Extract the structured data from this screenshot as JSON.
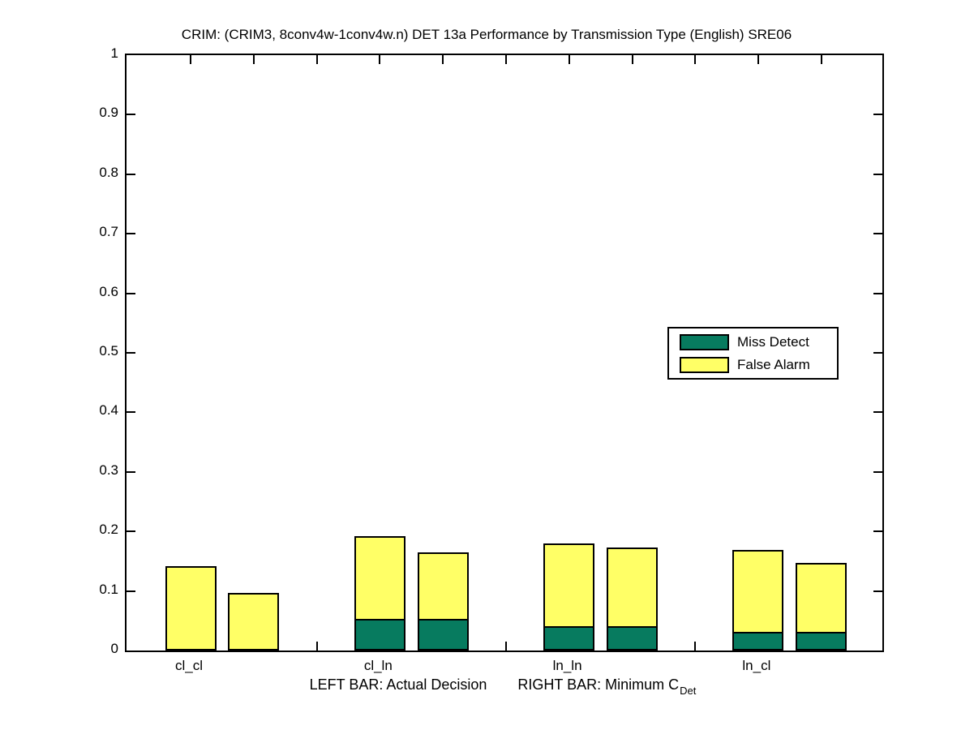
{
  "title": "CRIM: (CRIM3, 8conv4w-1conv4w.n) DET 13a Performance by Transmission Type (English) SRE06",
  "chart_data": {
    "type": "bar",
    "subtype": "paired stacked bars per category (left bar = Actual Decision, right bar = Minimum CDet)",
    "title": "CRIM: (CRIM3, 8conv4w-1conv4w.n) DET 13a Performance by Transmission Type (English) SRE06",
    "categories": [
      "cl_cl",
      "cl_ln",
      "ln_ln",
      "ln_cl"
    ],
    "stack_order_bottom_to_top": [
      "Miss Detect",
      "False Alarm"
    ],
    "series": [
      {
        "name": "Actual Decision - Miss Detect",
        "bar": "left",
        "values": [
          0.0,
          0.051,
          0.038,
          0.029
        ]
      },
      {
        "name": "Actual Decision - False Alarm",
        "bar": "left",
        "values": [
          0.142,
          0.141,
          0.142,
          0.14
        ]
      },
      {
        "name": "Minimum CDet - Miss Detect",
        "bar": "right",
        "values": [
          0.0,
          0.051,
          0.038,
          0.029
        ]
      },
      {
        "name": "Minimum CDet - False Alarm",
        "bar": "right",
        "values": [
          0.097,
          0.114,
          0.135,
          0.118
        ]
      }
    ],
    "bar_totals": {
      "left": [
        0.142,
        0.192,
        0.18,
        0.169
      ],
      "right": [
        0.097,
        0.165,
        0.173,
        0.147
      ]
    },
    "legend": {
      "position": "right-middle",
      "entries": [
        {
          "label": "Miss Detect",
          "color": "#077B5F"
        },
        {
          "label": "False Alarm",
          "color": "#FFFF66"
        }
      ]
    },
    "xlabel": "LEFT BAR: Actual Decision    RIGHT BAR: Minimum C_Det",
    "xlabel_parts": {
      "left": "LEFT BAR: Actual Decision",
      "right_main": "RIGHT BAR: Minimum C",
      "right_sub": "Det"
    },
    "ylabel": "",
    "ylim": [
      0,
      1
    ],
    "yticks": [
      0,
      0.1,
      0.2,
      0.3,
      0.4,
      0.5,
      0.6,
      0.7,
      0.8,
      0.9,
      1
    ],
    "ytick_labels": [
      "0",
      "0.1",
      "0.2",
      "0.3",
      "0.4",
      "0.5",
      "0.6",
      "0.7",
      "0.8",
      "0.9",
      "1"
    ],
    "grid": false,
    "colors": {
      "miss_detect": "#077B5F",
      "false_alarm": "#FFFF66",
      "bar_edge": "#000000",
      "axis": "#000000",
      "background": "#FFFFFF"
    }
  }
}
